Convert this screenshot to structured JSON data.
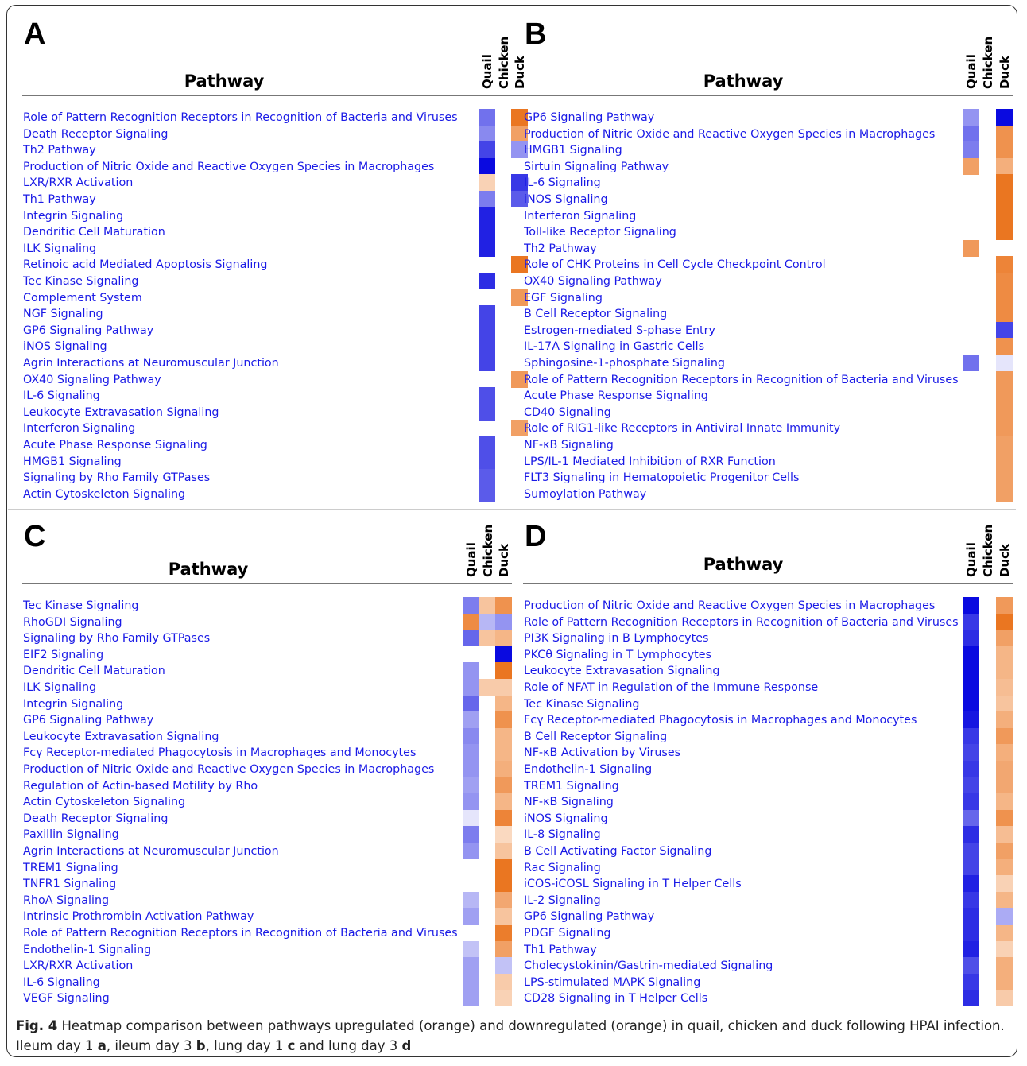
{
  "caption": {
    "fig_label": "Fig. 4",
    "text_1": " Heatmap comparison between pathways upregulated (orange) and downregulated (orange) in quail, chicken and duck following HPAI infection. Ileum day 1 ",
    "a": "a",
    "text_2": ", ileum day 3 ",
    "b": "b",
    "text_3": ", lung day 1 ",
    "c": "c",
    "text_4": " and lung day 3 ",
    "d": "d"
  },
  "column_labels": [
    "Quail",
    "Chicken",
    "Duck"
  ],
  "pathway_header": "Pathway",
  "colors": {
    "text": "#1a1ae6",
    "up": "#e8680a",
    "down": "#0a0ae0",
    "empty": "#ffffff"
  },
  "chart_data": [
    {
      "type": "heatmap",
      "panel": "A",
      "columns": [
        "Quail",
        "Chicken",
        "Duck"
      ],
      "rows": [
        "Role of Pattern Recognition Receptors in Recognition of Bacteria and Viruses",
        "Death Receptor Signaling",
        "Th2 Pathway",
        "Production of Nitric Oxide and Reactive Oxygen Species in Macrophages",
        "LXR/RXR Activation",
        "Th1 Pathway",
        "Integrin Signaling",
        "Dendritic Cell Maturation",
        "ILK Signaling",
        "Retinoic acid Mediated Apoptosis Signaling",
        "Tec Kinase Signaling",
        "Complement System",
        "NGF Signaling",
        "GP6 Signaling Pathway",
        "iNOS Signaling",
        "Agrin Interactions at Neuromuscular Junction",
        "OX40 Signaling Pathway",
        "IL-6 Signaling",
        "Leukocyte Extravasation Signaling",
        "Interferon Signaling",
        "Acute Phase Response Signaling",
        "HMGB1 Signaling",
        "Signaling by Rho Family GTPases",
        "Actin Cytoskeleton Signaling"
      ],
      "values": [
        [
          -0.55,
          null,
          0.9
        ],
        [
          -0.45,
          null,
          0.6
        ],
        [
          -0.75,
          null,
          -0.4
        ],
        [
          -1.0,
          null,
          null
        ],
        [
          0.25,
          null,
          -0.8
        ],
        [
          -0.5,
          null,
          -0.65
        ],
        [
          -0.9,
          null,
          null
        ],
        [
          -0.9,
          null,
          null
        ],
        [
          -0.9,
          null,
          null
        ],
        [
          null,
          null,
          0.9
        ],
        [
          -0.85,
          null,
          null
        ],
        [
          null,
          null,
          0.65
        ],
        [
          -0.75,
          null,
          null
        ],
        [
          -0.75,
          null,
          null
        ],
        [
          -0.75,
          null,
          null
        ],
        [
          -0.75,
          null,
          null
        ],
        [
          null,
          null,
          0.65
        ],
        [
          -0.7,
          null,
          null
        ],
        [
          -0.7,
          null,
          null
        ],
        [
          null,
          null,
          0.6
        ],
        [
          -0.7,
          null,
          null
        ],
        [
          -0.7,
          null,
          null
        ],
        [
          -0.65,
          null,
          null
        ],
        [
          -0.65,
          null,
          null
        ]
      ]
    },
    {
      "type": "heatmap",
      "panel": "B",
      "columns": [
        "Quail",
        "Chicken",
        "Duck"
      ],
      "rows": [
        "GP6 Signaling Pathway",
        "Production of Nitric Oxide and Reactive Oxygen Species in Macrophages",
        "HMGB1 Signaling",
        "Sirtuin Signaling Pathway",
        "IL-6 Signaling",
        "iNOS Signaling",
        "Interferon Signaling",
        "Toll-like Receptor Signaling",
        "Th2 Pathway",
        "Role of CHK Proteins in Cell Cycle Checkpoint Control",
        "OX40 Signaling Pathway",
        "EGF Signaling",
        "B Cell Receptor Signaling",
        "Estrogen-mediated S-phase Entry",
        "IL-17A Signaling in Gastric Cells",
        "Sphingosine-1-phosphate Signaling",
        "Role of Pattern Recognition Receptors in Recognition of Bacteria and Viruses",
        "Acute Phase Response Signaling",
        "CD40 Signaling",
        "Role of RIG1-like Receptors in Antiviral Innate Immunity",
        "NF-κB Signaling",
        "LPS/IL-1 Mediated Inhibition of RXR Function",
        "FLT3 Signaling in Hematopoietic Progenitor Cells",
        "Sumoylation Pathway"
      ],
      "values": [
        [
          -0.4,
          null,
          -1.0
        ],
        [
          -0.55,
          null,
          0.7
        ],
        [
          -0.5,
          null,
          0.7
        ],
        [
          0.6,
          null,
          0.5
        ],
        [
          null,
          null,
          0.9
        ],
        [
          null,
          null,
          0.9
        ],
        [
          null,
          null,
          0.9
        ],
        [
          null,
          null,
          0.9
        ],
        [
          0.65,
          null,
          null
        ],
        [
          null,
          null,
          0.8
        ],
        [
          null,
          null,
          0.75
        ],
        [
          null,
          null,
          0.75
        ],
        [
          null,
          null,
          0.75
        ],
        [
          null,
          null,
          -0.75
        ],
        [
          null,
          null,
          0.7
        ],
        [
          -0.55,
          null,
          -0.05
        ],
        [
          null,
          null,
          0.65
        ],
        [
          null,
          null,
          0.65
        ],
        [
          null,
          null,
          0.65
        ],
        [
          null,
          null,
          0.65
        ],
        [
          null,
          null,
          0.6
        ],
        [
          null,
          null,
          0.6
        ],
        [
          null,
          null,
          0.6
        ],
        [
          null,
          null,
          0.6
        ]
      ]
    },
    {
      "type": "heatmap",
      "panel": "C",
      "columns": [
        "Quail",
        "Chicken",
        "Duck"
      ],
      "rows": [
        "Tec Kinase Signaling",
        "RhoGDI Signaling",
        "Signaling by Rho Family GTPases",
        "EIF2 Signaling",
        "Dendritic Cell Maturation",
        "ILK Signaling",
        "Integrin Signaling",
        "GP6 Signaling Pathway",
        "Leukocyte Extravasation Signaling",
        "Fcγ Receptor-mediated Phagocytosis in Macrophages and Monocytes",
        "Production of Nitric Oxide and Reactive Oxygen Species in Macrophages",
        "Regulation of Actin-based Motility by Rho",
        "Actin Cytoskeleton Signaling",
        "Death Receptor Signaling",
        "Paxillin Signaling",
        "Agrin Interactions at Neuromuscular Junction",
        "TREM1 Signaling",
        "TNFR1 Signaling",
        "RhoA Signaling",
        "Intrinsic Prothrombin Activation Pathway",
        "Role of Pattern Recognition Receptors in Recognition of Bacteria and Viruses",
        "Endothelin-1 Signaling",
        "LXR/RXR Activation",
        "IL-6 Signaling",
        "VEGF Signaling"
      ],
      "values": [
        [
          -0.5,
          0.35,
          0.7
        ],
        [
          0.75,
          -0.25,
          -0.4
        ],
        [
          -0.6,
          0.35,
          0.45
        ],
        [
          null,
          null,
          -1.0
        ],
        [
          -0.4,
          null,
          0.9
        ],
        [
          -0.4,
          0.3,
          0.3
        ],
        [
          -0.6,
          null,
          0.45
        ],
        [
          -0.35,
          null,
          0.7
        ],
        [
          -0.45,
          null,
          0.45
        ],
        [
          -0.4,
          null,
          0.45
        ],
        [
          -0.4,
          null,
          0.5
        ],
        [
          -0.35,
          null,
          0.65
        ],
        [
          -0.4,
          null,
          0.45
        ],
        [
          -0.05,
          null,
          0.8
        ],
        [
          -0.5,
          null,
          0.2
        ],
        [
          -0.4,
          null,
          0.35
        ],
        [
          null,
          null,
          0.9
        ],
        [
          null,
          null,
          0.9
        ],
        [
          -0.25,
          null,
          0.55
        ],
        [
          -0.35,
          null,
          0.35
        ],
        [
          null,
          null,
          0.85
        ],
        [
          -0.2,
          null,
          0.6
        ],
        [
          -0.35,
          null,
          -0.2
        ],
        [
          -0.35,
          null,
          0.3
        ],
        [
          -0.35,
          null,
          0.25
        ]
      ]
    },
    {
      "type": "heatmap",
      "panel": "D",
      "columns": [
        "Quail",
        "Chicken",
        "Duck"
      ],
      "rows": [
        "Production of Nitric Oxide and Reactive Oxygen Species in Macrophages",
        "Role of Pattern Recognition Receptors in Recognition of Bacteria and Viruses",
        "PI3K Signaling in B Lymphocytes",
        "PKCθ Signaling in T Lymphocytes",
        "Leukocyte Extravasation Signaling",
        "Role of NFAT in Regulation of the Immune Response",
        "Tec Kinase Signaling",
        "Fcγ Receptor-mediated Phagocytosis in Macrophages and Monocytes",
        "B Cell Receptor Signaling",
        "NF-κB Activation by Viruses",
        "Endothelin-1 Signaling",
        "TREM1 Signaling",
        "NF-κB Signaling",
        "iNOS Signaling",
        "IL-8 Signaling",
        "B Cell Activating Factor Signaling",
        "Rac Signaling",
        "iCOS-iCOSL Signaling in T Helper Cells",
        "IL-2 Signaling",
        "GP6 Signaling Pathway",
        "PDGF Signaling",
        "Th1 Pathway",
        "Cholecystokinin/Gastrin-mediated Signaling",
        "LPS-stimulated MAPK Signaling",
        "CD28 Signaling in T Helper Cells"
      ],
      "values": [
        [
          -1.0,
          null,
          0.65
        ],
        [
          -0.8,
          null,
          0.9
        ],
        [
          -0.85,
          null,
          0.6
        ],
        [
          -1.0,
          null,
          0.45
        ],
        [
          -1.0,
          null,
          0.45
        ],
        [
          -1.0,
          null,
          0.4
        ],
        [
          -1.0,
          null,
          0.35
        ],
        [
          -0.95,
          null,
          0.5
        ],
        [
          -0.8,
          null,
          0.65
        ],
        [
          -0.75,
          null,
          0.5
        ],
        [
          -0.8,
          null,
          0.55
        ],
        [
          -0.75,
          null,
          0.55
        ],
        [
          -0.8,
          null,
          0.45
        ],
        [
          -0.6,
          null,
          0.7
        ],
        [
          -0.85,
          null,
          0.4
        ],
        [
          -0.75,
          null,
          0.6
        ],
        [
          -0.75,
          null,
          0.5
        ],
        [
          -0.9,
          null,
          0.25
        ],
        [
          -0.8,
          null,
          0.45
        ],
        [
          -0.85,
          null,
          -0.3
        ],
        [
          -0.85,
          null,
          0.45
        ],
        [
          -0.9,
          null,
          0.25
        ],
        [
          -0.7,
          null,
          0.5
        ],
        [
          -0.8,
          null,
          0.5
        ],
        [
          -0.85,
          null,
          0.3
        ]
      ]
    }
  ]
}
